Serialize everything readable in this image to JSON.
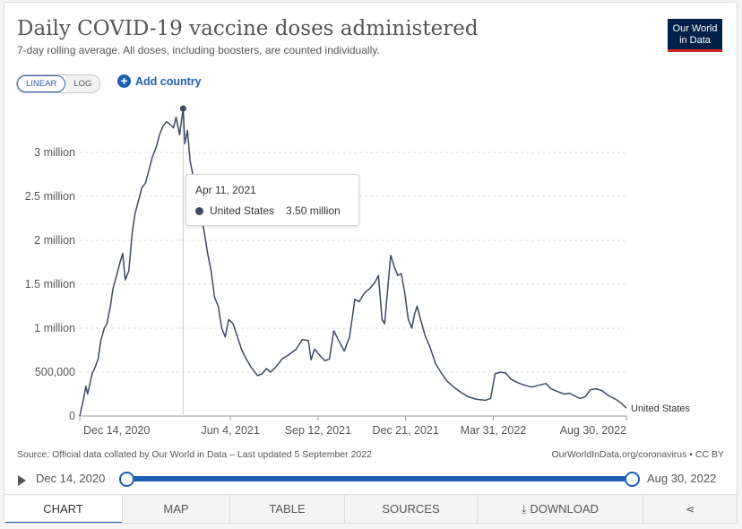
{
  "header": {
    "title": "Daily COVID-19 vaccine doses administered",
    "subtitle": "7-day rolling average. All doses, including boosters, are counted individually.",
    "logo": "Our World in Data"
  },
  "controls": {
    "linear_label": "LINEAR",
    "log_label": "LOG",
    "active_scale": "linear",
    "add_country_label": "Add country"
  },
  "tooltip": {
    "date": "Apr 11, 2021",
    "series": "United States",
    "value": "3.50 million"
  },
  "footer": {
    "source": "Source: Official data collated by Our World in Data – Last updated 5 September 2022",
    "license": "OurWorldInData.org/coronavirus • CC BY"
  },
  "timeline": {
    "start_label": "Dec 14, 2020",
    "end_label": "Aug 30, 2022"
  },
  "tabs": [
    {
      "label": "CHART",
      "active": true
    },
    {
      "label": "MAP"
    },
    {
      "label": "TABLE"
    },
    {
      "label": "SOURCES"
    },
    {
      "label": "DOWNLOAD",
      "icon": "download-icon"
    },
    {
      "label": "",
      "icon": "share-icon"
    }
  ],
  "colors": {
    "series_line": "#3c4a64",
    "accent": "#1d5db3",
    "logo_bg": "#002147",
    "logo_bar": "#ce261e"
  },
  "chart_data": {
    "type": "line",
    "x_unit": "date",
    "x_start": "2020-12-14",
    "x_end": "2022-08-30",
    "y_ticks": [
      0,
      500000,
      1000000,
      1500000,
      2000000,
      2500000,
      3000000
    ],
    "y_tick_labels": [
      "0",
      "500,000",
      "1 million",
      "1.5 million",
      "2 million",
      "2.5 million",
      "3 million"
    ],
    "ylim": [
      0,
      3500000
    ],
    "x_tick_labels": [
      {
        "date": "2020-12-14",
        "label": "Dec 14, 2020"
      },
      {
        "date": "2021-06-04",
        "label": "Jun 4, 2021"
      },
      {
        "date": "2021-09-12",
        "label": "Sep 12, 2021"
      },
      {
        "date": "2021-12-21",
        "label": "Dec 21, 2021"
      },
      {
        "date": "2022-03-31",
        "label": "Mar 31, 2022"
      },
      {
        "date": "2022-08-30",
        "label": "Aug 30, 2022"
      }
    ],
    "grid": "horizontal-dashed",
    "highlight": {
      "date": "2021-04-11",
      "value": 3500000
    },
    "series": [
      {
        "name": "United States",
        "points": [
          [
            "2020-12-14",
            0
          ],
          [
            "2020-12-18",
            180000
          ],
          [
            "2020-12-21",
            340000
          ],
          [
            "2020-12-23",
            250000
          ],
          [
            "2020-12-28",
            480000
          ],
          [
            "2020-12-31",
            540000
          ],
          [
            "2021-01-04",
            650000
          ],
          [
            "2021-01-07",
            860000
          ],
          [
            "2021-01-11",
            1000000
          ],
          [
            "2021-01-14",
            1050000
          ],
          [
            "2021-01-18",
            1250000
          ],
          [
            "2021-01-21",
            1450000
          ],
          [
            "2021-01-25",
            1600000
          ],
          [
            "2021-01-29",
            1750000
          ],
          [
            "2021-02-01",
            1850000
          ],
          [
            "2021-02-04",
            1550000
          ],
          [
            "2021-02-08",
            1650000
          ],
          [
            "2021-02-12",
            2100000
          ],
          [
            "2021-02-15",
            2300000
          ],
          [
            "2021-02-19",
            2450000
          ],
          [
            "2021-02-23",
            2600000
          ],
          [
            "2021-02-27",
            2650000
          ],
          [
            "2021-03-03",
            2800000
          ],
          [
            "2021-03-07",
            2950000
          ],
          [
            "2021-03-11",
            3050000
          ],
          [
            "2021-03-15",
            3200000
          ],
          [
            "2021-03-19",
            3300000
          ],
          [
            "2021-03-23",
            3350000
          ],
          [
            "2021-03-27",
            3320000
          ],
          [
            "2021-03-31",
            3280000
          ],
          [
            "2021-04-03",
            3400000
          ],
          [
            "2021-04-07",
            3200000
          ],
          [
            "2021-04-11",
            3500000
          ],
          [
            "2021-04-13",
            3100000
          ],
          [
            "2021-04-16",
            3250000
          ],
          [
            "2021-04-19",
            2900000
          ],
          [
            "2021-04-23",
            2700000
          ],
          [
            "2021-04-27",
            2550000
          ],
          [
            "2021-05-01",
            2300000
          ],
          [
            "2021-05-05",
            2100000
          ],
          [
            "2021-05-09",
            1850000
          ],
          [
            "2021-05-13",
            1650000
          ],
          [
            "2021-05-17",
            1350000
          ],
          [
            "2021-05-21",
            1250000
          ],
          [
            "2021-05-25",
            1000000
          ],
          [
            "2021-05-29",
            900000
          ],
          [
            "2021-06-02",
            1100000
          ],
          [
            "2021-06-07",
            1050000
          ],
          [
            "2021-06-12",
            900000
          ],
          [
            "2021-06-17",
            750000
          ],
          [
            "2021-06-22",
            650000
          ],
          [
            "2021-06-28",
            550000
          ],
          [
            "2021-07-05",
            460000
          ],
          [
            "2021-07-10",
            480000
          ],
          [
            "2021-07-15",
            540000
          ],
          [
            "2021-07-20",
            500000
          ],
          [
            "2021-07-26",
            560000
          ],
          [
            "2021-08-02",
            650000
          ],
          [
            "2021-08-10",
            700000
          ],
          [
            "2021-08-18",
            760000
          ],
          [
            "2021-08-25",
            870000
          ],
          [
            "2021-09-01",
            860000
          ],
          [
            "2021-09-04",
            640000
          ],
          [
            "2021-09-08",
            760000
          ],
          [
            "2021-09-15",
            680000
          ],
          [
            "2021-09-20",
            630000
          ],
          [
            "2021-09-25",
            650000
          ],
          [
            "2021-09-30",
            970000
          ],
          [
            "2021-10-06",
            850000
          ],
          [
            "2021-10-12",
            740000
          ],
          [
            "2021-10-18",
            900000
          ],
          [
            "2021-10-24",
            1330000
          ],
          [
            "2021-10-29",
            1300000
          ],
          [
            "2021-11-04",
            1400000
          ],
          [
            "2021-11-10",
            1450000
          ],
          [
            "2021-11-16",
            1520000
          ],
          [
            "2021-11-20",
            1600000
          ],
          [
            "2021-11-24",
            1100000
          ],
          [
            "2021-11-27",
            1050000
          ],
          [
            "2021-12-01",
            1500000
          ],
          [
            "2021-12-04",
            1830000
          ],
          [
            "2021-12-08",
            1700000
          ],
          [
            "2021-12-12",
            1600000
          ],
          [
            "2021-12-16",
            1620000
          ],
          [
            "2021-12-20",
            1400000
          ],
          [
            "2021-12-24",
            1100000
          ],
          [
            "2021-12-28",
            1000000
          ],
          [
            "2021-12-31",
            1150000
          ],
          [
            "2022-01-03",
            1250000
          ],
          [
            "2022-01-07",
            1100000
          ],
          [
            "2022-01-12",
            920000
          ],
          [
            "2022-01-18",
            780000
          ],
          [
            "2022-01-24",
            600000
          ],
          [
            "2022-01-30",
            500000
          ],
          [
            "2022-02-06",
            400000
          ],
          [
            "2022-02-14",
            330000
          ],
          [
            "2022-02-22",
            270000
          ],
          [
            "2022-03-02",
            220000
          ],
          [
            "2022-03-12",
            190000
          ],
          [
            "2022-03-22",
            180000
          ],
          [
            "2022-03-28",
            200000
          ],
          [
            "2022-04-02",
            480000
          ],
          [
            "2022-04-08",
            500000
          ],
          [
            "2022-04-14",
            490000
          ],
          [
            "2022-04-20",
            420000
          ],
          [
            "2022-04-28",
            380000
          ],
          [
            "2022-05-06",
            350000
          ],
          [
            "2022-05-14",
            330000
          ],
          [
            "2022-05-22",
            350000
          ],
          [
            "2022-05-30",
            370000
          ],
          [
            "2022-06-05",
            310000
          ],
          [
            "2022-06-12",
            280000
          ],
          [
            "2022-06-20",
            250000
          ],
          [
            "2022-06-26",
            260000
          ],
          [
            "2022-07-02",
            230000
          ],
          [
            "2022-07-08",
            200000
          ],
          [
            "2022-07-14",
            220000
          ],
          [
            "2022-07-20",
            300000
          ],
          [
            "2022-07-26",
            310000
          ],
          [
            "2022-08-02",
            290000
          ],
          [
            "2022-08-10",
            230000
          ],
          [
            "2022-08-18",
            190000
          ],
          [
            "2022-08-25",
            140000
          ],
          [
            "2022-08-30",
            90000
          ]
        ]
      }
    ]
  }
}
